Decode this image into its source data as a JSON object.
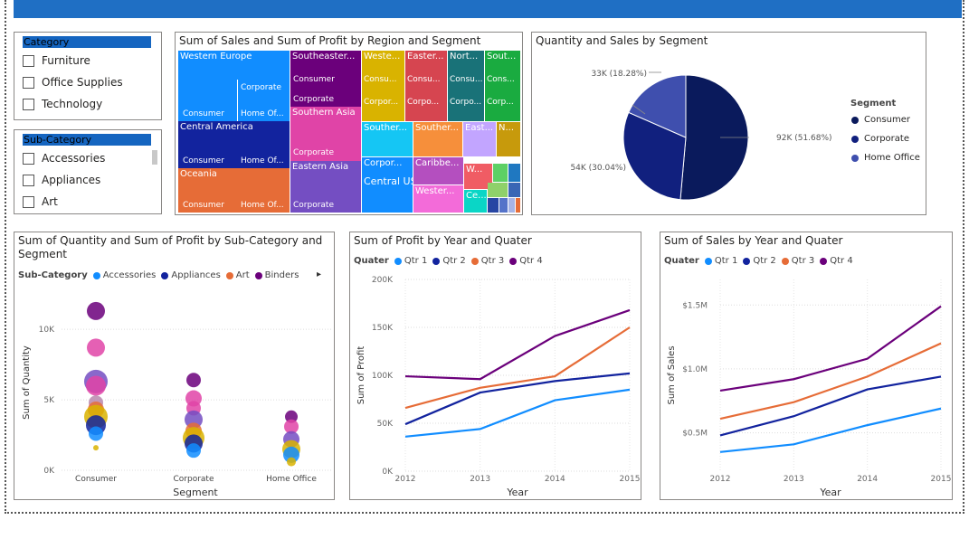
{
  "colors": {
    "accent": "#1f6fc4",
    "qtr1": "#118dff",
    "qtr2": "#12239e",
    "qtr3": "#e66c37",
    "qtr4": "#6b007b",
    "consumer": "#0a1a5c",
    "corporate": "#11207e",
    "home_office": "#3f4fae"
  },
  "banner": {
    "title": ""
  },
  "category_slicer": {
    "header": "Category",
    "items": [
      "Furniture",
      "Office Supplies",
      "Technology"
    ]
  },
  "subcategory_slicer": {
    "header": "Sub-Category",
    "items": [
      "Accessories",
      "Appliances",
      "Art"
    ]
  },
  "treemap": {
    "title": "Sum of Sales and Sum of Profit by Region and Segment",
    "labels": {
      "western_europe": "Western Europe",
      "corporate": "Corporate",
      "consumer": "Consumer",
      "home_of": "Home Of...",
      "central_america": "Central America",
      "oceania": "Oceania",
      "southeaster": "Southeaster...",
      "southern_asia": "Southern Asia",
      "eastern_asia": "Eastern Asia",
      "weste": "Weste...",
      "consu": "Consu...",
      "corpor": "Corpor...",
      "easter": "Easter...",
      "corpo": "Corpo...",
      "nort": "Nort...",
      "consu2": "Consu...",
      "corpo2": "Corpo...",
      "sout": "Sout...",
      "cons": "Cons...",
      "corp": "Corp...",
      "souther1": "Souther...",
      "souther2": "Souther...",
      "east": "East...",
      "n": "N...",
      "corpor2": "Corpor...",
      "central_us": "Central US",
      "caribbe": "Caribbe...",
      "w": "W...",
      "wester": "Wester...",
      "ce": "Ce..."
    }
  },
  "pie": {
    "title": "Quantity and Sales by Segment",
    "legend_title": "Segment",
    "label_consumer": "92K (51.68%)",
    "label_corporate": "54K (30.04%)",
    "label_home": "33K (18.28%)"
  },
  "bubble": {
    "title": "Sum of Quantity and Sum of Profit by Sub-Category and Segment",
    "legend_title": "Sub-Category",
    "legend_items": [
      "Accessories",
      "Appliances",
      "Art",
      "Binders"
    ],
    "legend_more": "▸",
    "xlabel": "Segment",
    "ylabel": "Sum of Quantity",
    "yticks": [
      "10K",
      "5K",
      "0K"
    ],
    "categories": [
      "Consumer",
      "Corporate",
      "Home Office"
    ]
  },
  "profit_chart": {
    "title": "Sum of Profit by Year and Quater",
    "legend_title": "Quater",
    "legend_items": [
      "Qtr 1",
      "Qtr 2",
      "Qtr 3",
      "Qtr 4"
    ],
    "xlabel": "Year",
    "ylabel": "Sum of Profit",
    "yticks": [
      "200K",
      "150K",
      "100K",
      "50K",
      "0K"
    ],
    "xticks": [
      "2012",
      "2013",
      "2014",
      "2015"
    ]
  },
  "sales_chart": {
    "title": "Sum of Sales by Year and Quater",
    "legend_title": "Quater",
    "legend_items": [
      "Qtr 1",
      "Qtr 2",
      "Qtr 3",
      "Qtr 4"
    ],
    "xlabel": "Year",
    "ylabel": "Sum of Sales",
    "yticks": [
      "$1.5M",
      "$1.0M",
      "$0.5M"
    ],
    "xticks": [
      "2012",
      "2013",
      "2014",
      "2015"
    ]
  },
  "chart_data": [
    {
      "type": "heatmap",
      "title": "Sum of Sales and Sum of Profit by Region and Segment"
    },
    {
      "type": "pie",
      "title": "Quantity and Sales by Segment",
      "categories": [
        "Consumer",
        "Corporate",
        "Home Office"
      ],
      "values": [
        92000,
        54000,
        33000
      ],
      "percent": [
        51.68,
        30.04,
        18.28
      ],
      "legend": "right"
    },
    {
      "type": "scatter",
      "title": "Sum of Quantity and Sum of Profit by Sub-Category and Segment",
      "xlabel": "Segment",
      "ylabel": "Sum of Quantity",
      "categories": [
        "Consumer",
        "Corporate",
        "Home Office"
      ],
      "ylim": [
        0,
        12000
      ],
      "points": [
        {
          "cat": 0,
          "y": 11300,
          "r": 10,
          "color": "#6b007b"
        },
        {
          "cat": 0,
          "y": 8700,
          "r": 10,
          "color": "#e044a7"
        },
        {
          "cat": 0,
          "y": 6300,
          "r": 13,
          "color": "#744ec2"
        },
        {
          "cat": 0,
          "y": 6000,
          "r": 11,
          "color": "#e044a7"
        },
        {
          "cat": 0,
          "y": 4800,
          "r": 8,
          "color": "#b887ad"
        },
        {
          "cat": 0,
          "y": 4300,
          "r": 9,
          "color": "#e66c37"
        },
        {
          "cat": 0,
          "y": 3800,
          "r": 13,
          "color": "#d9b300"
        },
        {
          "cat": 0,
          "y": 3200,
          "r": 11,
          "color": "#12239e"
        },
        {
          "cat": 0,
          "y": 2600,
          "r": 8,
          "color": "#118dff"
        },
        {
          "cat": 0,
          "y": 1600,
          "r": 3,
          "color": "#d9b300"
        },
        {
          "cat": 1,
          "y": 6400,
          "r": 8,
          "color": "#6b007b"
        },
        {
          "cat": 1,
          "y": 5100,
          "r": 9,
          "color": "#e044a7"
        },
        {
          "cat": 1,
          "y": 4400,
          "r": 8,
          "color": "#e044a7"
        },
        {
          "cat": 1,
          "y": 3600,
          "r": 10,
          "color": "#744ec2"
        },
        {
          "cat": 1,
          "y": 2800,
          "r": 9,
          "color": "#e66c37"
        },
        {
          "cat": 1,
          "y": 2300,
          "r": 12,
          "color": "#d9b300"
        },
        {
          "cat": 1,
          "y": 1900,
          "r": 10,
          "color": "#12239e"
        },
        {
          "cat": 1,
          "y": 1400,
          "r": 8,
          "color": "#118dff"
        },
        {
          "cat": 2,
          "y": 3800,
          "r": 7,
          "color": "#6b007b"
        },
        {
          "cat": 2,
          "y": 3100,
          "r": 8,
          "color": "#e044a7"
        },
        {
          "cat": 2,
          "y": 2200,
          "r": 9,
          "color": "#744ec2"
        },
        {
          "cat": 2,
          "y": 1500,
          "r": 10,
          "color": "#d9b300"
        },
        {
          "cat": 2,
          "y": 1100,
          "r": 9,
          "color": "#118dff"
        },
        {
          "cat": 2,
          "y": 600,
          "r": 5,
          "color": "#d9b300"
        }
      ]
    },
    {
      "type": "line",
      "title": "Sum of Profit by Year and Quater",
      "xlabel": "Year",
      "ylabel": "Sum of Profit",
      "x": [
        2012,
        2013,
        2014,
        2015
      ],
      "ylim": [
        0,
        200000
      ],
      "series": [
        {
          "name": "Qtr 1",
          "values": [
            36000,
            44000,
            74000,
            85000
          ]
        },
        {
          "name": "Qtr 2",
          "values": [
            49000,
            82000,
            94000,
            102000
          ]
        },
        {
          "name": "Qtr 3",
          "values": [
            66000,
            87000,
            99000,
            150000
          ]
        },
        {
          "name": "Qtr 4",
          "values": [
            99000,
            96000,
            141000,
            168000
          ]
        }
      ],
      "legend": "top-left"
    },
    {
      "type": "line",
      "title": "Sum of Sales by Year and Quater",
      "xlabel": "Year",
      "ylabel": "Sum of Sales",
      "x": [
        2012,
        2013,
        2014,
        2015
      ],
      "ylim": [
        200000,
        1700000
      ],
      "series": [
        {
          "name": "Qtr 1",
          "values": [
            350000,
            410000,
            560000,
            690000
          ]
        },
        {
          "name": "Qtr 2",
          "values": [
            480000,
            630000,
            840000,
            940000
          ]
        },
        {
          "name": "Qtr 3",
          "values": [
            610000,
            740000,
            940000,
            1200000
          ]
        },
        {
          "name": "Qtr 4",
          "values": [
            830000,
            920000,
            1080000,
            1490000
          ]
        }
      ],
      "legend": "top-left"
    }
  ]
}
